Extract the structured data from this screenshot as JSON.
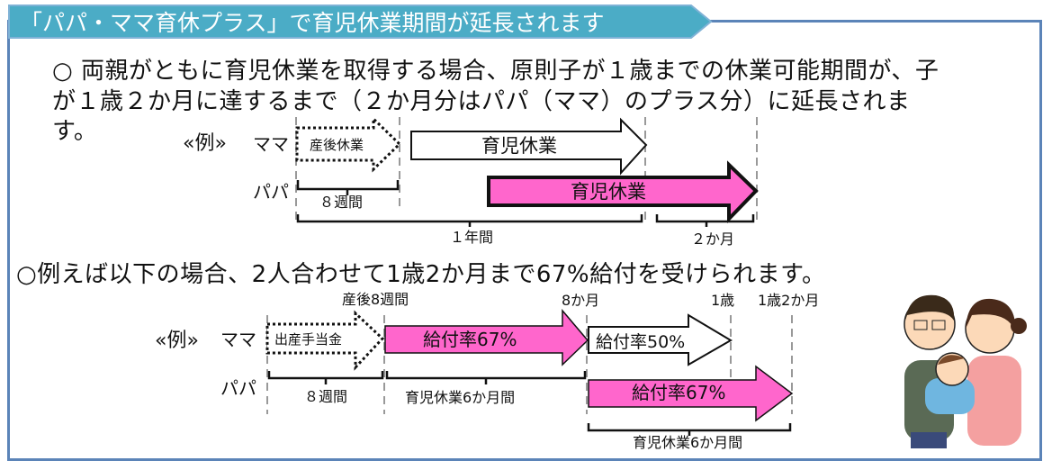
{
  "title": "「パパ・ママ育休プラス」で育児休業期間が延長されます",
  "paragraph1": {
    "line1": "○ 両親がともに育児休業を取得する場合、原則子が１歳までの休業可能期間が、子",
    "line2": "が１歳２か月に達するまで（２か月分はパパ（ママ）のプラス分）に延長されま",
    "line3": "す。"
  },
  "diagram1": {
    "example": "«例»",
    "mama": "ママ",
    "papa": "パパ",
    "postnatal": "産後休業",
    "mama_leave": "育児休業",
    "papa_leave": "育児休業",
    "weeks8": "８週間",
    "year1": "１年間",
    "months2": "２か月"
  },
  "paragraph2": "○例えば以下の場合、2人合わせて1歳2か月まで67%給付を受けられます。",
  "diagram2": {
    "label_postnatal8w": "産後8週間",
    "label_8m": "8か月",
    "label_1y": "1歳",
    "label_1y2m": "1歳2か月",
    "example": "«例»",
    "mama": "ママ",
    "papa": "パパ",
    "maternity_allowance": "出産手当金",
    "mama_rate67": "給付率67%",
    "mama_rate50": "給付率50%",
    "papa_rate67": "給付率67%",
    "weeks8": "８週間",
    "leave6m_mama": "育児休業6か月間",
    "leave6m_papa": "育児休業6か月間"
  },
  "colors": {
    "banner": "#4bacc6",
    "pink": "#ff66cc",
    "frame": "#5b84b8"
  },
  "illustration": "parents-with-baby"
}
